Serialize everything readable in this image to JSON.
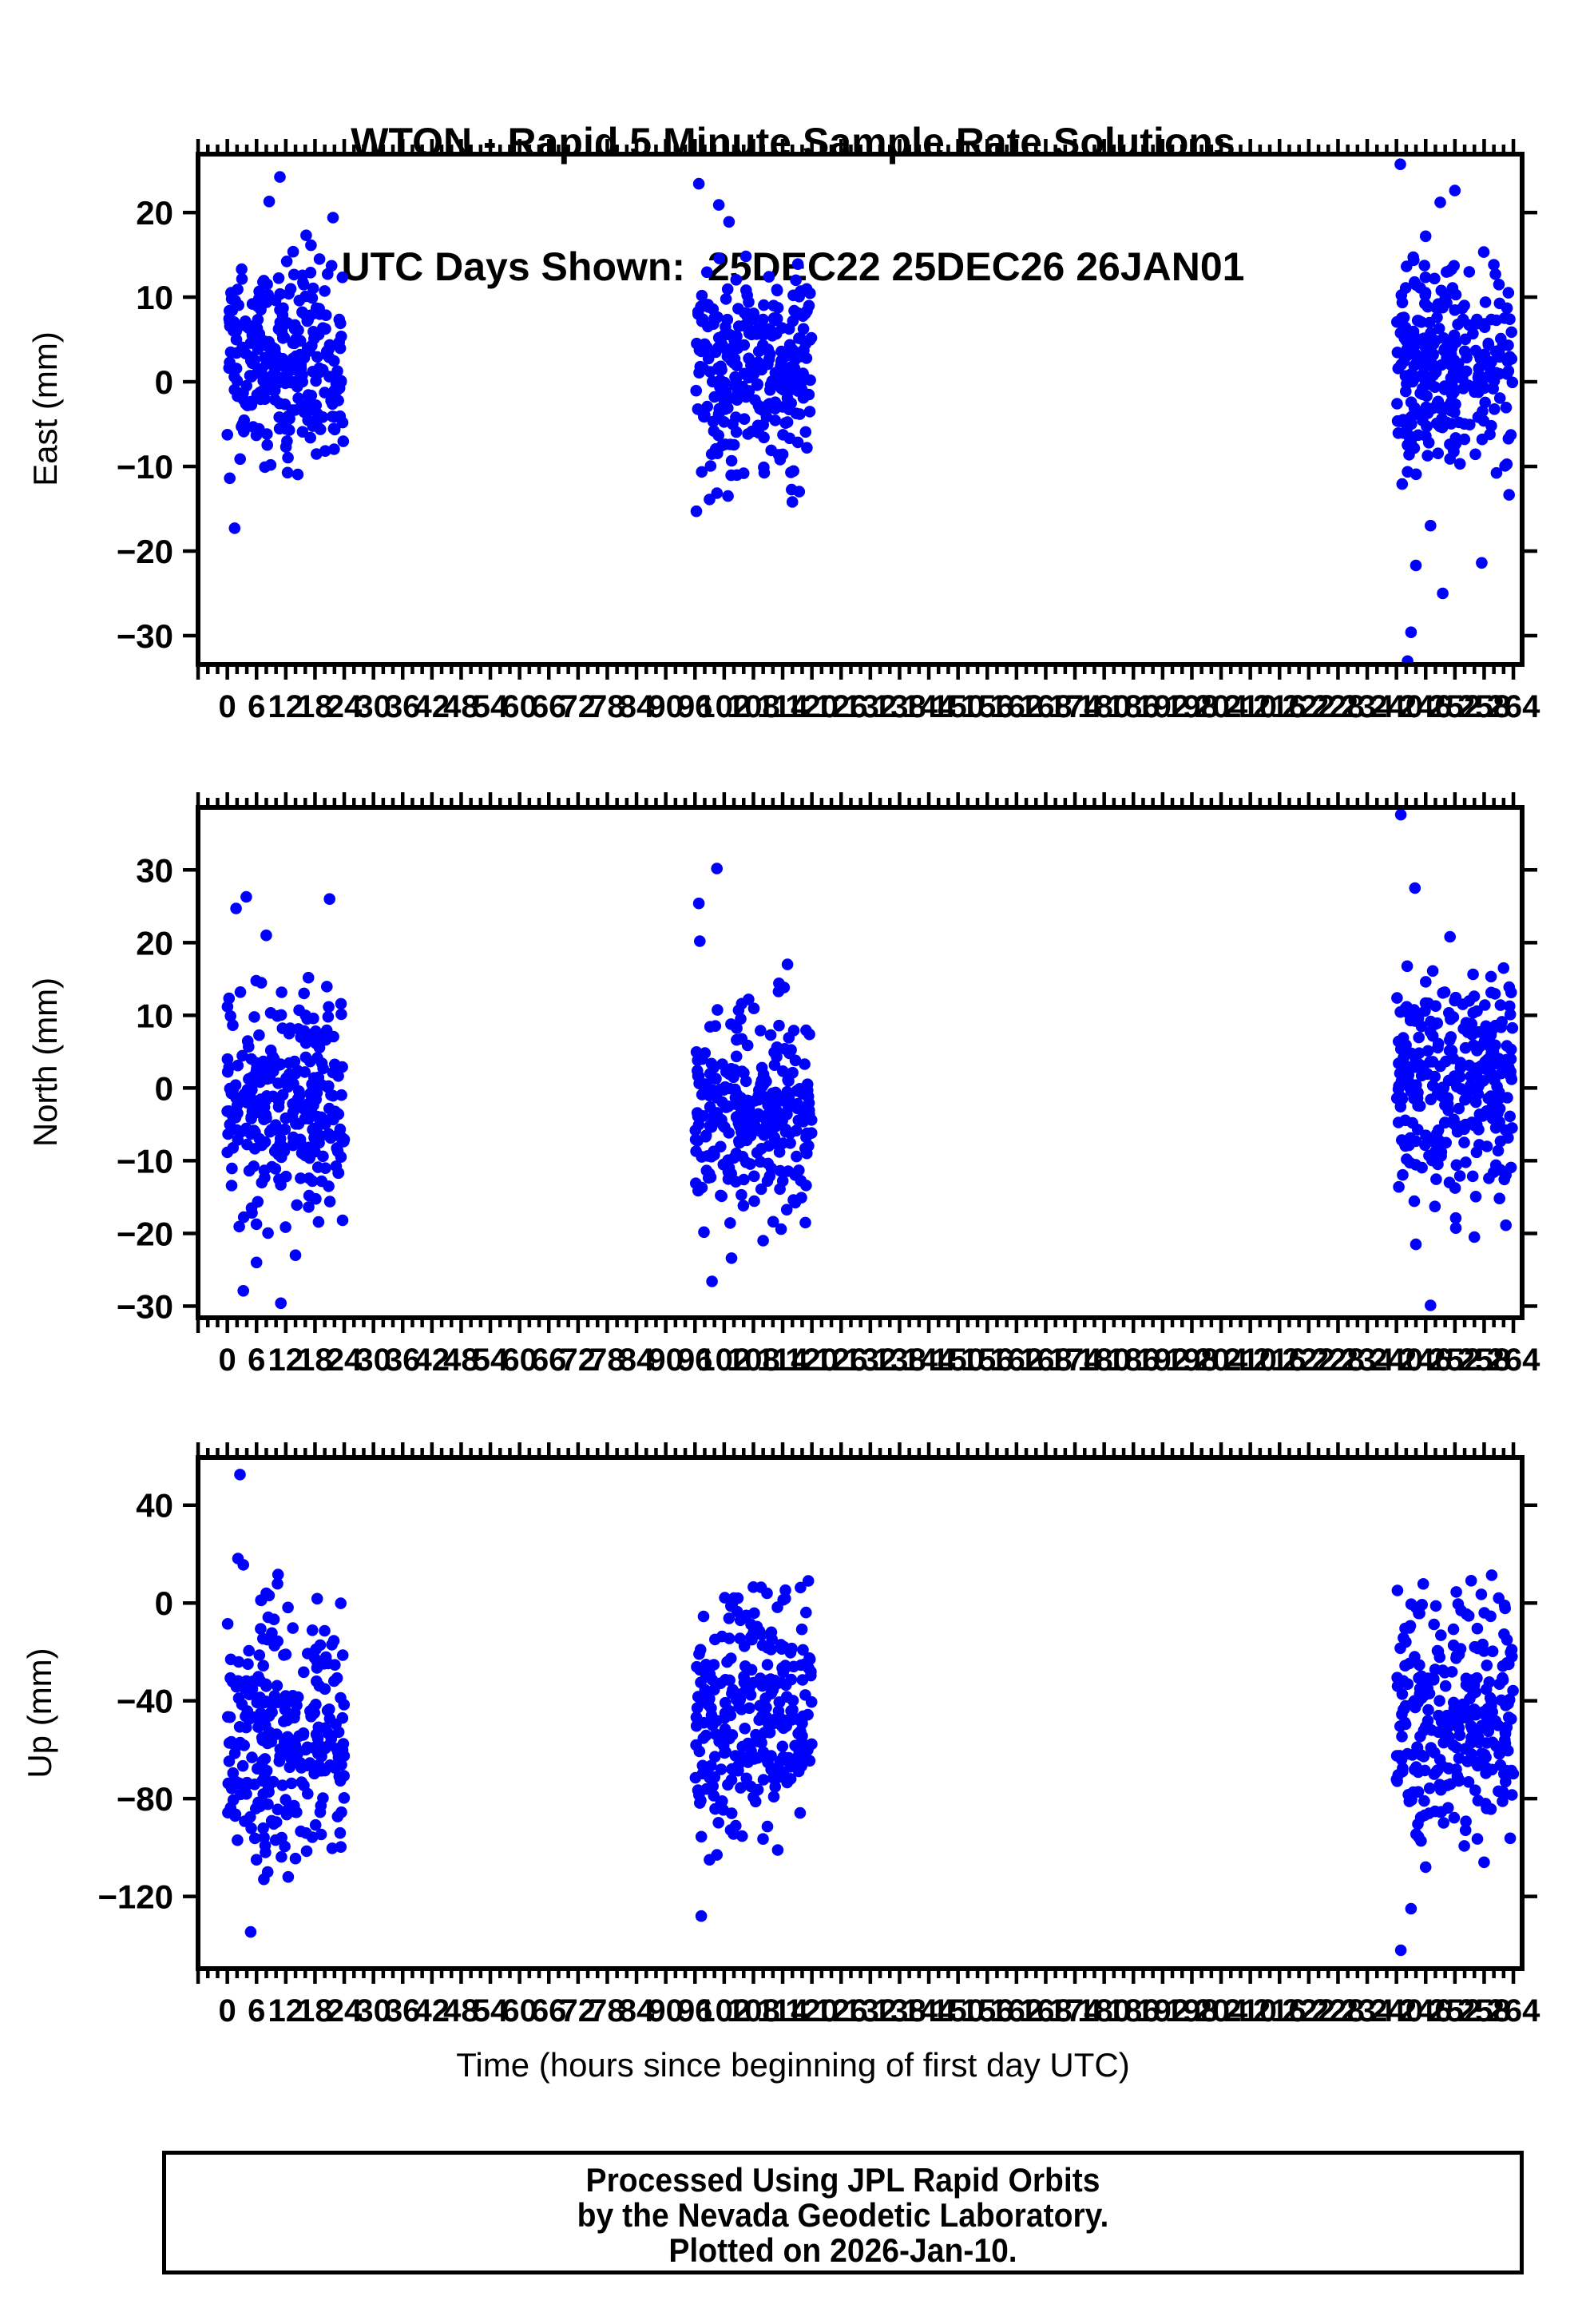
{
  "title": {
    "line1": "WTON - Rapid 5 Minute Sample Rate Solutions",
    "line2": "UTC Days Shown:  25DEC22 25DEC26 26JAN01"
  },
  "xaxis_title": "Time (hours since beginning of first day UTC)",
  "footer": {
    "line1": "Processed Using JPL Rapid Orbits",
    "line2": "by the Nevada Geodetic Laboratory.",
    "line3": "Plotted on 2026-Jan-10."
  },
  "colors": {
    "point": "#0000ff",
    "axis": "#000000",
    "background": "#ffffff"
  },
  "x_tick_values": [
    0,
    6,
    12,
    18,
    24,
    30,
    36,
    42,
    48,
    54,
    60,
    66,
    72,
    78,
    84,
    90,
    96,
    102,
    108,
    114,
    120,
    126,
    132,
    138,
    144,
    150,
    156,
    162,
    168,
    174,
    180,
    186,
    192,
    198,
    204,
    210,
    216,
    222,
    228,
    234,
    240,
    246,
    252,
    258,
    264
  ],
  "chart_data": [
    {
      "name": "east",
      "type": "scatter",
      "ylabel": "East (mm)",
      "y_range": [
        -33.4,
        26.9
      ],
      "y_ticks": [
        20,
        10,
        0,
        -10,
        -20,
        -30
      ],
      "x_range": [
        -6,
        265.8
      ],
      "x_major_step": 6,
      "x_minor_step": 2,
      "legend": "none",
      "clusters": [
        {
          "x_start": 0,
          "x_end": 24,
          "n": 280,
          "mean": 2.8,
          "std": 5.8,
          "clip_min": -13.0,
          "clip_max": 16.5,
          "seed": 101
        },
        {
          "x_start": 96,
          "x_end": 120,
          "n": 280,
          "mean": 0.8,
          "std": 6.0,
          "clip_min": -13.5,
          "clip_max": 16.5,
          "seed": 102
        },
        {
          "x_start": 240,
          "x_end": 264,
          "n": 280,
          "mean": 0.5,
          "std": 6.5,
          "clip_min": -14.0,
          "clip_max": 16.5,
          "seed": 103
        }
      ],
      "outliers": [
        [
          1.5,
          -17.3
        ],
        [
          10.8,
          24.2
        ],
        [
          8.6,
          21.3
        ],
        [
          21.7,
          19.4
        ],
        [
          16.2,
          17.3
        ],
        [
          96.8,
          23.4
        ],
        [
          100.9,
          20.9
        ],
        [
          103,
          18.9
        ],
        [
          96.3,
          -15.3
        ],
        [
          116,
          -14.2
        ],
        [
          99,
          -13.9
        ],
        [
          240.8,
          25.7
        ],
        [
          252,
          22.6
        ],
        [
          249,
          21.2
        ],
        [
          246,
          17.2
        ],
        [
          247,
          -17
        ],
        [
          244,
          -21.7
        ],
        [
          257.5,
          -21.4
        ],
        [
          249.5,
          -25
        ],
        [
          243,
          -29.6
        ],
        [
          242.3,
          -33
        ]
      ]
    },
    {
      "name": "north",
      "type": "scatter",
      "ylabel": "North (mm)",
      "y_range": [
        -31.6,
        38.6
      ],
      "y_ticks": [
        30,
        20,
        10,
        0,
        -10,
        -20,
        -30
      ],
      "x_range": [
        -6,
        265.8
      ],
      "x_major_step": 6,
      "x_minor_step": 2,
      "legend": "none",
      "clusters": [
        {
          "x_start": 0,
          "x_end": 24,
          "n": 280,
          "mean": -2.5,
          "std": 7.2,
          "clip_min": -20,
          "clip_max": 16,
          "seed": 201
        },
        {
          "x_start": 96,
          "x_end": 120,
          "n": 280,
          "mean": -3.0,
          "std": 7.2,
          "clip_min": -20,
          "clip_max": 16,
          "seed": 202
        },
        {
          "x_start": 240,
          "x_end": 264,
          "n": 280,
          "mean": 0.0,
          "std": 8.0,
          "clip_min": -20,
          "clip_max": 18,
          "seed": 203
        }
      ],
      "outliers": [
        [
          3.9,
          26.3
        ],
        [
          21,
          26
        ],
        [
          1.8,
          24.7
        ],
        [
          8,
          21
        ],
        [
          3.3,
          -27.9
        ],
        [
          11,
          -29.6
        ],
        [
          6,
          -24
        ],
        [
          14,
          -23
        ],
        [
          100.5,
          30.2
        ],
        [
          96.8,
          25.4
        ],
        [
          97,
          20.2
        ],
        [
          115,
          17
        ],
        [
          99.5,
          -26.6
        ],
        [
          103.5,
          -23.4
        ],
        [
          110,
          -21
        ],
        [
          240.9,
          37.6
        ],
        [
          243.8,
          27.5
        ],
        [
          251,
          20.8
        ],
        [
          262,
          16.5
        ],
        [
          247,
          -29.9
        ],
        [
          244,
          -21.5
        ],
        [
          256,
          -20.5
        ]
      ]
    },
    {
      "name": "up",
      "type": "scatter",
      "ylabel": "Up (mm)",
      "y_range": [
        -149.5,
        59.5
      ],
      "y_ticks": [
        40,
        0,
        -40,
        -80,
        -120
      ],
      "x_range": [
        -6,
        265.8
      ],
      "x_major_step": 6,
      "x_minor_step": 2,
      "legend": "none",
      "clusters": [
        {
          "x_start": 0,
          "x_end": 24,
          "n": 280,
          "mean": -55,
          "std": 26,
          "clip_min": -104,
          "clip_max": 14,
          "seed": 301
        },
        {
          "x_start": 96,
          "x_end": 120,
          "n": 280,
          "mean": -45,
          "std": 24,
          "clip_min": -100,
          "clip_max": 10,
          "seed": 302
        },
        {
          "x_start": 240,
          "x_end": 264,
          "n": 280,
          "mean": -48,
          "std": 25,
          "clip_min": -104,
          "clip_max": 12,
          "seed": 303
        }
      ],
      "outliers": [
        [
          2.6,
          52.5
        ],
        [
          2.2,
          18.2
        ],
        [
          3.3,
          15.6
        ],
        [
          8,
          4
        ],
        [
          4.8,
          -134.5
        ],
        [
          7.5,
          -113
        ],
        [
          8.3,
          -110
        ],
        [
          12.5,
          -112
        ],
        [
          6,
          -105
        ],
        [
          14,
          -104.5
        ],
        [
          108,
          6.5
        ],
        [
          110.8,
          4
        ],
        [
          104,
          2
        ],
        [
          97.3,
          -128
        ],
        [
          99,
          -105
        ],
        [
          100.5,
          -103
        ],
        [
          113,
          -101
        ],
        [
          245.5,
          7.8
        ],
        [
          252.3,
          4.5
        ],
        [
          261,
          2
        ],
        [
          240.9,
          -142
        ],
        [
          243,
          -125
        ],
        [
          246,
          -108
        ],
        [
          258,
          -106
        ]
      ]
    }
  ]
}
